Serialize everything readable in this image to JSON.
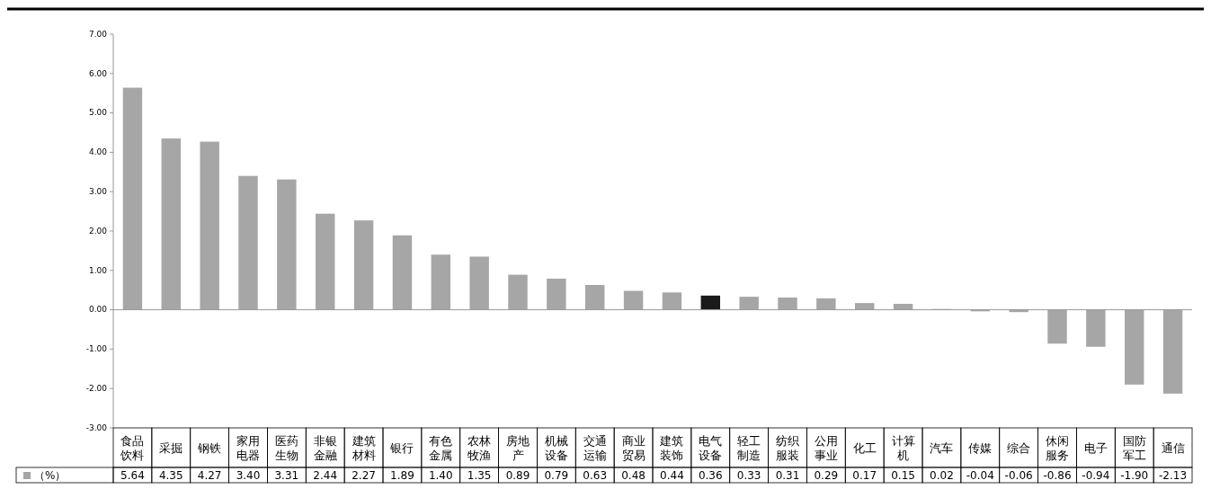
{
  "chart_data": {
    "type": "bar",
    "categories": [
      "食品饮料",
      "采掘",
      "钢铁",
      "家用电器",
      "医药生物",
      "非银金融",
      "建筑材料",
      "银行",
      "有色金属",
      "农林牧渔",
      "房地产",
      "机械设备",
      "交通运输",
      "商业贸易",
      "建筑装饰",
      "电气设备",
      "轻工制造",
      "纺织服装",
      "公用事业",
      "化工",
      "计算机",
      "汽车",
      "传媒",
      "综合",
      "休闲服务",
      "电子",
      "国防军工",
      "通信"
    ],
    "series": [
      {
        "name": "（%）",
        "color": "#a6a6a6",
        "colors": [
          "#a6a6a6",
          "#a6a6a6",
          "#a6a6a6",
          "#a6a6a6",
          "#a6a6a6",
          "#a6a6a6",
          "#a6a6a6",
          "#a6a6a6",
          "#a6a6a6",
          "#a6a6a6",
          "#a6a6a6",
          "#a6a6a6",
          "#a6a6a6",
          "#a6a6a6",
          "#a6a6a6",
          "#1a1a1a",
          "#a6a6a6",
          "#a6a6a6",
          "#a6a6a6",
          "#a6a6a6",
          "#a6a6a6",
          "#a6a6a6",
          "#a6a6a6",
          "#a6a6a6",
          "#a6a6a6",
          "#a6a6a6",
          "#a6a6a6",
          "#a6a6a6"
        ],
        "values": [
          5.64,
          4.35,
          4.27,
          3.4,
          3.31,
          2.44,
          2.27,
          1.89,
          1.4,
          1.35,
          0.89,
          0.79,
          0.63,
          0.48,
          0.44,
          0.36,
          0.33,
          0.31,
          0.29,
          0.17,
          0.15,
          0.02,
          -0.04,
          -0.06,
          -0.86,
          -0.94,
          -1.9,
          -2.13
        ],
        "value_labels": [
          "5.64",
          "4.35",
          "4.27",
          "3.40",
          "3.31",
          "2.44",
          "2.27",
          "1.89",
          "1.40",
          "1.35",
          "0.89",
          "0.79",
          "0.63",
          "0.48",
          "0.44",
          "0.36",
          "0.33",
          "0.31",
          "0.29",
          "0.17",
          "0.15",
          "0.02",
          "-0.04",
          "-0.06",
          "-0.86",
          "-0.94",
          "-1.90",
          "-2.13"
        ]
      }
    ],
    "ylim": [
      -3,
      7
    ],
    "yticks": [
      {
        "value": -3,
        "label": "-3.00"
      },
      {
        "value": -2,
        "label": "-2.00"
      },
      {
        "value": -1,
        "label": "-1.00"
      },
      {
        "value": 0,
        "label": "0.00"
      },
      {
        "value": 1,
        "label": "1.00"
      },
      {
        "value": 2,
        "label": "2.00"
      },
      {
        "value": 3,
        "label": "3.00"
      },
      {
        "value": 4,
        "label": "4.00"
      },
      {
        "value": 5,
        "label": "5.00"
      },
      {
        "value": 6,
        "label": "6.00"
      },
      {
        "value": 7,
        "label": "7.00"
      }
    ],
    "legend": "bottom left"
  }
}
